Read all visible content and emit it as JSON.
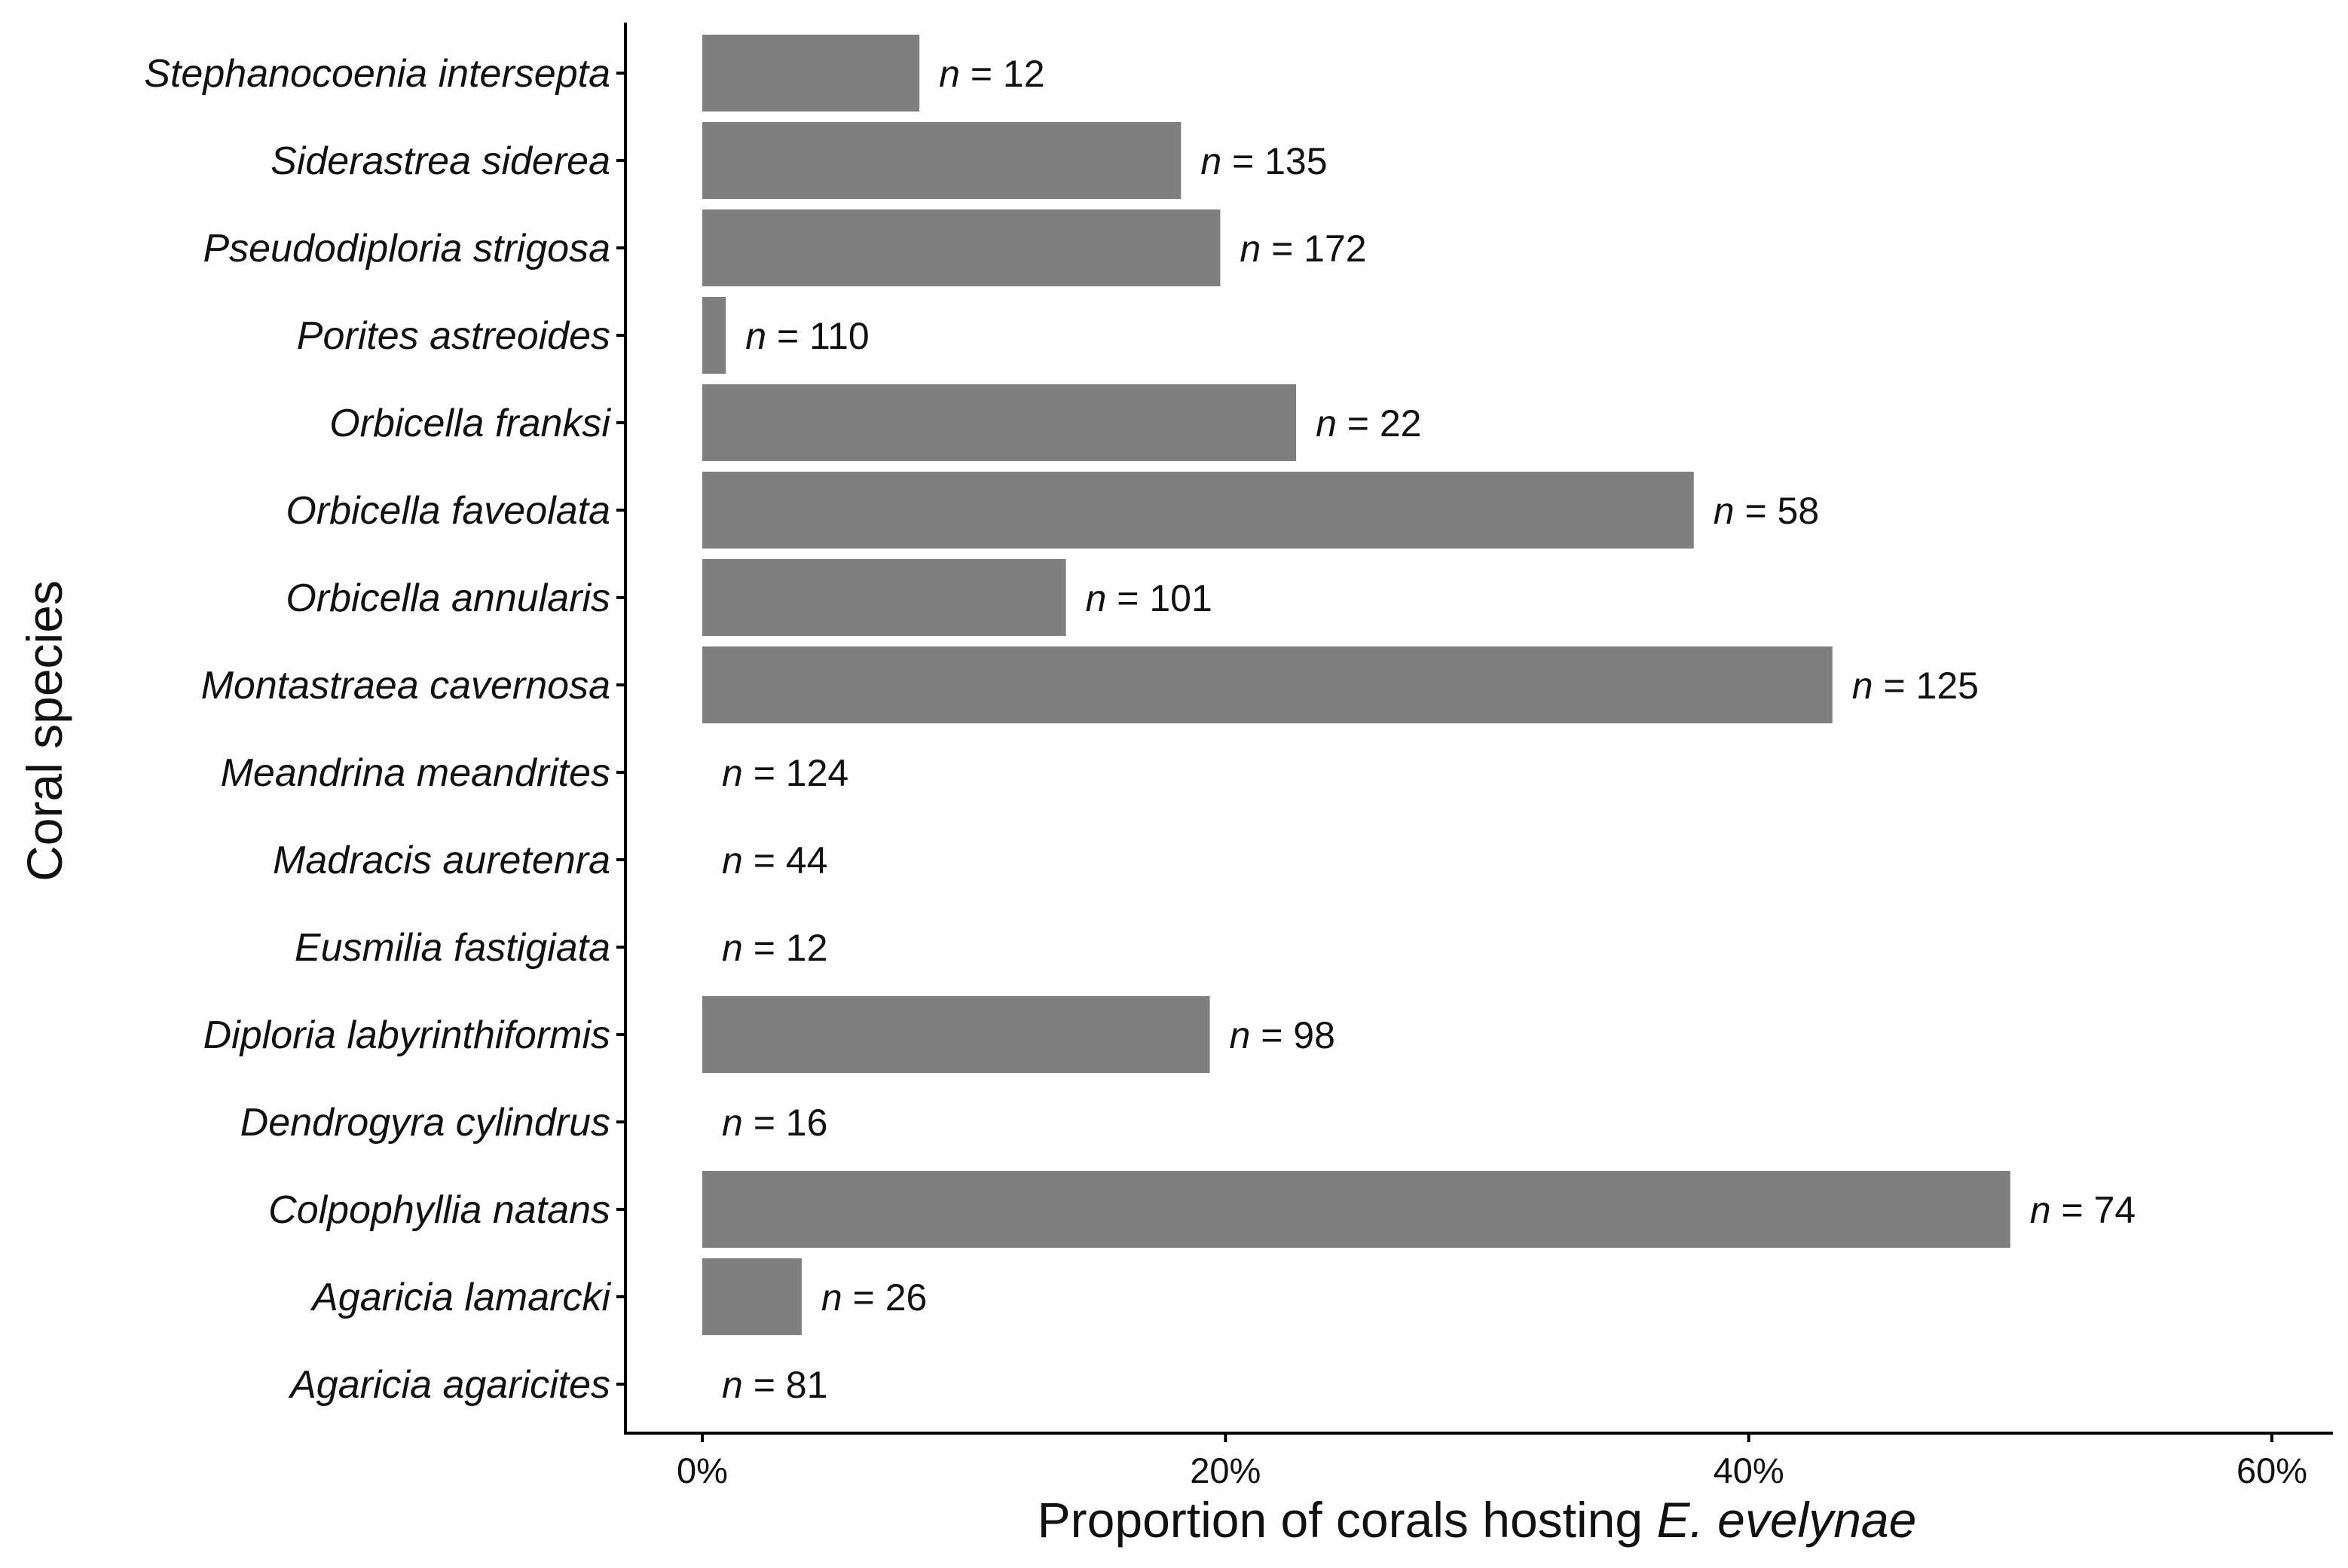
{
  "chart_data": {
    "type": "bar",
    "orientation": "horizontal",
    "title": "",
    "xlabel": "Proportion of corals hosting ",
    "xlabel_italic": "E. evelynae",
    "ylabel": "Coral species",
    "xlim": [
      0,
      0.6
    ],
    "x_ticks": [
      {
        "value": 0.0,
        "label": "0%"
      },
      {
        "value": 0.2,
        "label": "20%"
      },
      {
        "value": 0.4,
        "label": "40%"
      },
      {
        "value": 0.6,
        "label": "60%"
      }
    ],
    "n_prefix": "n",
    "n_separator": " = ",
    "bar_color": "#7f7f7f",
    "categories": [
      "Stephanocoenia intersepta",
      "Siderastrea siderea",
      "Pseudodiploria strigosa",
      "Porites astreoides",
      "Orbicella franksi",
      "Orbicella faveolata",
      "Orbicella annularis",
      "Montastraea cavernosa",
      "Meandrina meandrites",
      "Madracis auretenra",
      "Eusmilia fastigiata",
      "Diploria labyrinthiformis",
      "Dendrogyra cylindrus",
      "Colpophyllia natans",
      "Agaricia lamarcki",
      "Agaricia agaricites"
    ],
    "values": [
      0.083,
      0.183,
      0.198,
      0.009,
      0.227,
      0.379,
      0.139,
      0.432,
      0.0,
      0.0,
      0.0,
      0.194,
      0.0,
      0.5,
      0.038,
      0.0
    ],
    "n_values": [
      "12",
      "135",
      "172",
      "110",
      "22",
      "58",
      "101",
      "125",
      "124",
      "44",
      "12",
      "98",
      "16",
      "74",
      "26",
      "81"
    ]
  }
}
